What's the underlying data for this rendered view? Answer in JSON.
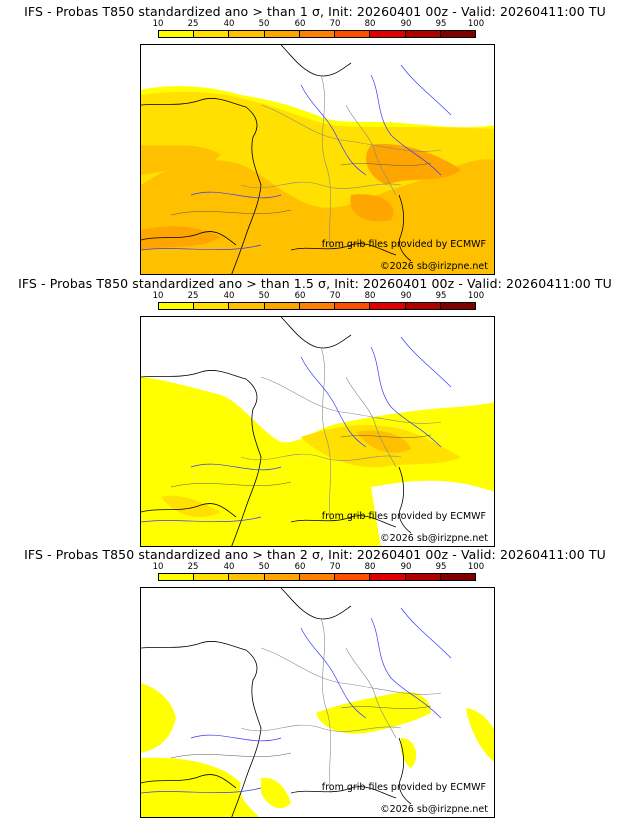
{
  "panels": [
    {
      "title": "IFS - Probas T850  standardized ano > than 1 σ, Init: 20260401 00z - Valid: 20260411:00 TU",
      "threshold": "1 σ"
    },
    {
      "title": "IFS - Probas T850  standardized ano > than 1.5 σ, Init: 20260401 00z - Valid: 20260411:00 TU",
      "threshold": "1.5 σ"
    },
    {
      "title": "IFS - Probas T850  standardized ano > than 2 σ, Init: 20260401 00z - Valid: 20260411:00 TU",
      "threshold": "2 σ"
    }
  ],
  "colorbar": {
    "ticks": [
      "10",
      "25",
      "40",
      "50",
      "60",
      "70",
      "80",
      "90",
      "95",
      "100"
    ],
    "colors": [
      "#ffff00",
      "#ffe000",
      "#ffc000",
      "#ffa500",
      "#ff8000",
      "#ff5000",
      "#e00000",
      "#b00000",
      "#800000"
    ]
  },
  "credits": {
    "source": "from grib files provided by ECMWF",
    "copyright": "©2026 sb@irizpne.net"
  }
}
